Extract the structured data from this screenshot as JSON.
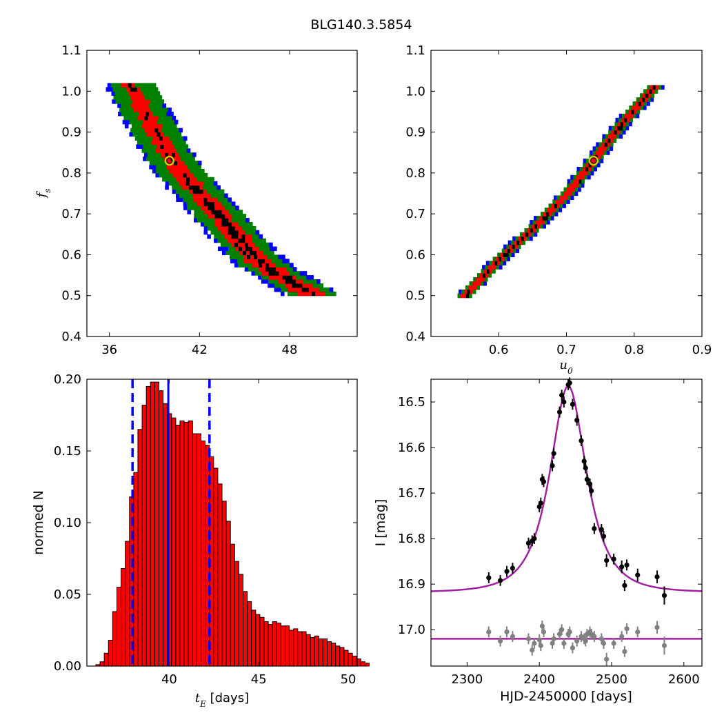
{
  "figure_title": "BLG140.3.5854",
  "chart_data": [
    {
      "id": "tE-fs",
      "type": "heatmap",
      "title": "",
      "xlabel": "",
      "ylabel": "f_s",
      "xlim": [
        34.5,
        52.5
      ],
      "ylim": [
        0.4,
        1.1
      ],
      "xticks": [
        36,
        42,
        48
      ],
      "yticks": [
        0.4,
        0.5,
        0.6,
        0.7,
        0.8,
        0.9,
        1.0,
        1.1
      ],
      "confidence_colors": {
        "outer": "#0000ff",
        "middle": "#008000",
        "inner": "#ff0000",
        "best": "#000000"
      },
      "best_fit": {
        "x": 40.0,
        "y": 0.83
      },
      "band_centerline": [
        {
          "x": 37.2,
          "y": 1.02
        },
        {
          "x": 38.3,
          "y": 0.94
        },
        {
          "x": 40.0,
          "y": 0.83
        },
        {
          "x": 41.5,
          "y": 0.76
        },
        {
          "x": 43.0,
          "y": 0.7
        },
        {
          "x": 44.8,
          "y": 0.62
        },
        {
          "x": 46.2,
          "y": 0.57
        },
        {
          "x": 48.0,
          "y": 0.53
        },
        {
          "x": 49.3,
          "y": 0.5
        }
      ],
      "grid": false
    },
    {
      "id": "u0-fs",
      "type": "heatmap",
      "title": "",
      "xlabel": "u_0",
      "ylabel": "",
      "xlim": [
        0.5,
        0.9
      ],
      "ylim": [
        0.4,
        1.1
      ],
      "xticks": [
        0.6,
        0.7,
        0.8,
        0.9
      ],
      "yticks": [
        0.4,
        0.5,
        0.6,
        0.7,
        0.8,
        0.9,
        1.0,
        1.1
      ],
      "best_fit": {
        "x": 0.74,
        "y": 0.83
      },
      "band_centerline": [
        {
          "x": 0.548,
          "y": 0.495
        },
        {
          "x": 0.6,
          "y": 0.585
        },
        {
          "x": 0.65,
          "y": 0.66
        },
        {
          "x": 0.7,
          "y": 0.745
        },
        {
          "x": 0.74,
          "y": 0.83
        },
        {
          "x": 0.78,
          "y": 0.915
        },
        {
          "x": 0.833,
          "y": 1.015
        }
      ],
      "grid": false
    },
    {
      "id": "tE-hist",
      "type": "bar",
      "title": "",
      "xlabel": "t_E [days]",
      "ylabel": "normed N",
      "xlim": [
        35.4,
        50.5
      ],
      "ylim": [
        0.0,
        0.2
      ],
      "xticks": [
        40,
        45,
        50
      ],
      "yticks": [
        0.0,
        0.05,
        0.1,
        0.15,
        0.2
      ],
      "bin_start": 35.9,
      "bin_width": 0.235,
      "values": [
        0.001,
        0.003,
        0.009,
        0.018,
        0.038,
        0.055,
        0.068,
        0.087,
        0.118,
        0.135,
        0.165,
        0.182,
        0.195,
        0.198,
        0.198,
        0.192,
        0.183,
        0.176,
        0.173,
        0.168,
        0.171,
        0.17,
        0.171,
        0.162,
        0.162,
        0.157,
        0.154,
        0.146,
        0.138,
        0.127,
        0.115,
        0.101,
        0.085,
        0.073,
        0.064,
        0.052,
        0.045,
        0.039,
        0.036,
        0.034,
        0.031,
        0.029,
        0.031,
        0.03,
        0.028,
        0.028,
        0.025,
        0.026,
        0.024,
        0.024,
        0.022,
        0.02,
        0.021,
        0.019,
        0.019,
        0.017,
        0.016,
        0.014,
        0.013,
        0.011,
        0.009,
        0.007,
        0.005,
        0.003,
        0.002
      ],
      "bar_color": "#ff0000",
      "median_line": 39.95,
      "interval_lines": [
        37.95,
        42.25
      ],
      "grid": false
    },
    {
      "id": "lightcurve",
      "type": "scatter",
      "title": "",
      "xlabel": "HJD-2450000 [days]",
      "ylabel": "I [mag]",
      "xlim": [
        2250,
        2625
      ],
      "ylim": [
        17.08,
        16.45
      ],
      "xticks": [
        2300,
        2400,
        2500,
        2600
      ],
      "yticks": [
        16.5,
        16.6,
        16.7,
        16.8,
        16.9,
        17.0
      ],
      "model": {
        "color": "#a020a0",
        "baseline": 16.918,
        "peak": 16.465,
        "t0": 2440,
        "tE": 40,
        "u0": 0.74,
        "residual_baseline": 17.02
      },
      "series": [
        {
          "name": "",
          "color": "#000000",
          "points": [
            {
              "x": 2330,
              "y": 16.886,
              "err": 0.012
            },
            {
              "x": 2346,
              "y": 16.892,
              "err": 0.012
            },
            {
              "x": 2355,
              "y": 16.872,
              "err": 0.012
            },
            {
              "x": 2363,
              "y": 16.865,
              "err": 0.012
            },
            {
              "x": 2385,
              "y": 16.81,
              "err": 0.012
            },
            {
              "x": 2390,
              "y": 16.805,
              "err": 0.012
            },
            {
              "x": 2393,
              "y": 16.8,
              "err": 0.012
            },
            {
              "x": 2400,
              "y": 16.73,
              "err": 0.012
            },
            {
              "x": 2402,
              "y": 16.722,
              "err": 0.012
            },
            {
              "x": 2404,
              "y": 16.67,
              "err": 0.012
            },
            {
              "x": 2406,
              "y": 16.675,
              "err": 0.012
            },
            {
              "x": 2418,
              "y": 16.64,
              "err": 0.012
            },
            {
              "x": 2420,
              "y": 16.613,
              "err": 0.012
            },
            {
              "x": 2428,
              "y": 16.522,
              "err": 0.012
            },
            {
              "x": 2431,
              "y": 16.485,
              "err": 0.012
            },
            {
              "x": 2434,
              "y": 16.5,
              "err": 0.012
            },
            {
              "x": 2440,
              "y": 16.462,
              "err": 0.012
            },
            {
              "x": 2442,
              "y": 16.458,
              "err": 0.012
            },
            {
              "x": 2446,
              "y": 16.505,
              "err": 0.012
            },
            {
              "x": 2452,
              "y": 16.54,
              "err": 0.012
            },
            {
              "x": 2458,
              "y": 16.585,
              "err": 0.012
            },
            {
              "x": 2462,
              "y": 16.63,
              "err": 0.012
            },
            {
              "x": 2464,
              "y": 16.645,
              "err": 0.012
            },
            {
              "x": 2466,
              "y": 16.67,
              "err": 0.012
            },
            {
              "x": 2470,
              "y": 16.68,
              "err": 0.012
            },
            {
              "x": 2472,
              "y": 16.695,
              "err": 0.012
            },
            {
              "x": 2476,
              "y": 16.778,
              "err": 0.012
            },
            {
              "x": 2486,
              "y": 16.78,
              "err": 0.012
            },
            {
              "x": 2489,
              "y": 16.795,
              "err": 0.012
            },
            {
              "x": 2493,
              "y": 16.848,
              "err": 0.014
            },
            {
              "x": 2503,
              "y": 16.845,
              "err": 0.012
            },
            {
              "x": 2514,
              "y": 16.862,
              "err": 0.014
            },
            {
              "x": 2518,
              "y": 16.903,
              "err": 0.012
            },
            {
              "x": 2521,
              "y": 16.858,
              "err": 0.012
            },
            {
              "x": 2536,
              "y": 16.88,
              "err": 0.014
            },
            {
              "x": 2563,
              "y": 16.884,
              "err": 0.014
            },
            {
              "x": 2573,
              "y": 16.925,
              "err": 0.02
            }
          ]
        },
        {
          "name": "",
          "color": "#808080",
          "points": [
            {
              "x": 2330,
              "y": 17.005,
              "err": 0.012
            },
            {
              "x": 2346,
              "y": 17.025,
              "err": 0.012
            },
            {
              "x": 2355,
              "y": 17.005,
              "err": 0.012
            },
            {
              "x": 2363,
              "y": 17.015,
              "err": 0.012
            },
            {
              "x": 2385,
              "y": 17.02,
              "err": 0.012
            },
            {
              "x": 2390,
              "y": 17.045,
              "err": 0.012
            },
            {
              "x": 2393,
              "y": 17.03,
              "err": 0.012
            },
            {
              "x": 2400,
              "y": 17.022,
              "err": 0.012
            },
            {
              "x": 2402,
              "y": 17.035,
              "err": 0.012
            },
            {
              "x": 2404,
              "y": 16.992,
              "err": 0.012
            },
            {
              "x": 2406,
              "y": 17.005,
              "err": 0.012
            },
            {
              "x": 2418,
              "y": 17.03,
              "err": 0.012
            },
            {
              "x": 2420,
              "y": 17.02,
              "err": 0.012
            },
            {
              "x": 2428,
              "y": 17.01,
              "err": 0.012
            },
            {
              "x": 2431,
              "y": 17.0,
              "err": 0.012
            },
            {
              "x": 2434,
              "y": 17.03,
              "err": 0.012
            },
            {
              "x": 2440,
              "y": 17.01,
              "err": 0.012
            },
            {
              "x": 2442,
              "y": 17.005,
              "err": 0.012
            },
            {
              "x": 2446,
              "y": 17.04,
              "err": 0.012
            },
            {
              "x": 2452,
              "y": 17.025,
              "err": 0.012
            },
            {
              "x": 2458,
              "y": 17.015,
              "err": 0.012
            },
            {
              "x": 2462,
              "y": 17.02,
              "err": 0.012
            },
            {
              "x": 2464,
              "y": 17.025,
              "err": 0.012
            },
            {
              "x": 2466,
              "y": 17.01,
              "err": 0.012
            },
            {
              "x": 2470,
              "y": 17.005,
              "err": 0.012
            },
            {
              "x": 2472,
              "y": 17.01,
              "err": 0.012
            },
            {
              "x": 2476,
              "y": 17.015,
              "err": 0.012
            },
            {
              "x": 2486,
              "y": 17.02,
              "err": 0.012
            },
            {
              "x": 2489,
              "y": 17.03,
              "err": 0.012
            },
            {
              "x": 2493,
              "y": 17.065,
              "err": 0.014
            },
            {
              "x": 2503,
              "y": 17.03,
              "err": 0.012
            },
            {
              "x": 2514,
              "y": 17.015,
              "err": 0.012
            },
            {
              "x": 2518,
              "y": 17.048,
              "err": 0.012
            },
            {
              "x": 2521,
              "y": 16.998,
              "err": 0.012
            },
            {
              "x": 2536,
              "y": 17.005,
              "err": 0.012
            },
            {
              "x": 2563,
              "y": 16.995,
              "err": 0.014
            },
            {
              "x": 2573,
              "y": 17.035,
              "err": 0.02
            }
          ]
        }
      ],
      "grid": false
    }
  ]
}
